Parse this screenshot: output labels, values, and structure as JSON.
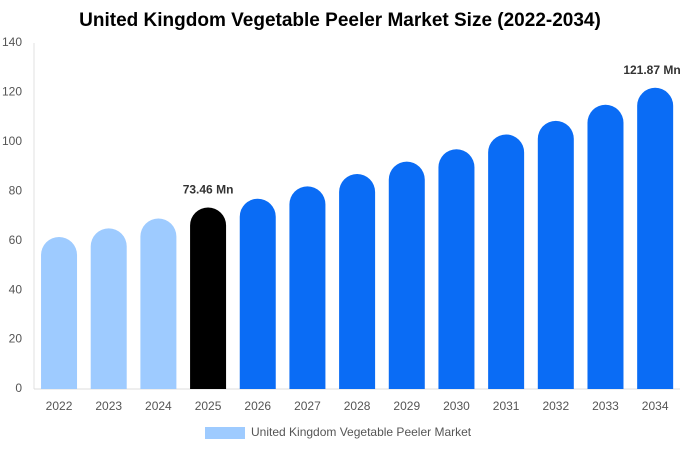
{
  "chart_data": {
    "type": "bar",
    "title": "United Kingdom Vegetable Peeler Market  Size (2022-2034)",
    "categories": [
      "2022",
      "2023",
      "2024",
      "2025",
      "2026",
      "2027",
      "2028",
      "2029",
      "2030",
      "2031",
      "2032",
      "2033",
      "2034"
    ],
    "series": [
      {
        "name": "United Kingdom Vegetable Peeler Market",
        "color": "#9ecbff",
        "values": [
          61.5,
          65,
          69,
          73.46,
          77,
          82,
          87,
          92,
          97,
          103,
          108.5,
          115,
          121.87
        ],
        "colors": [
          "#9ecbff",
          "#9ecbff",
          "#9ecbff",
          "#000000",
          "#0a6cf5",
          "#0a6cf5",
          "#0a6cf5",
          "#0a6cf5",
          "#0a6cf5",
          "#0a6cf5",
          "#0a6cf5",
          "#0a6cf5",
          "#0a6cf5"
        ],
        "value_labels": [
          null,
          null,
          null,
          "73.46 Mn",
          null,
          null,
          null,
          null,
          null,
          null,
          null,
          null,
          "121.87 Mn"
        ]
      }
    ],
    "ylim": [
      0,
      140
    ],
    "yticks": [
      0,
      20,
      40,
      60,
      80,
      100,
      120,
      140
    ],
    "grid": false
  }
}
